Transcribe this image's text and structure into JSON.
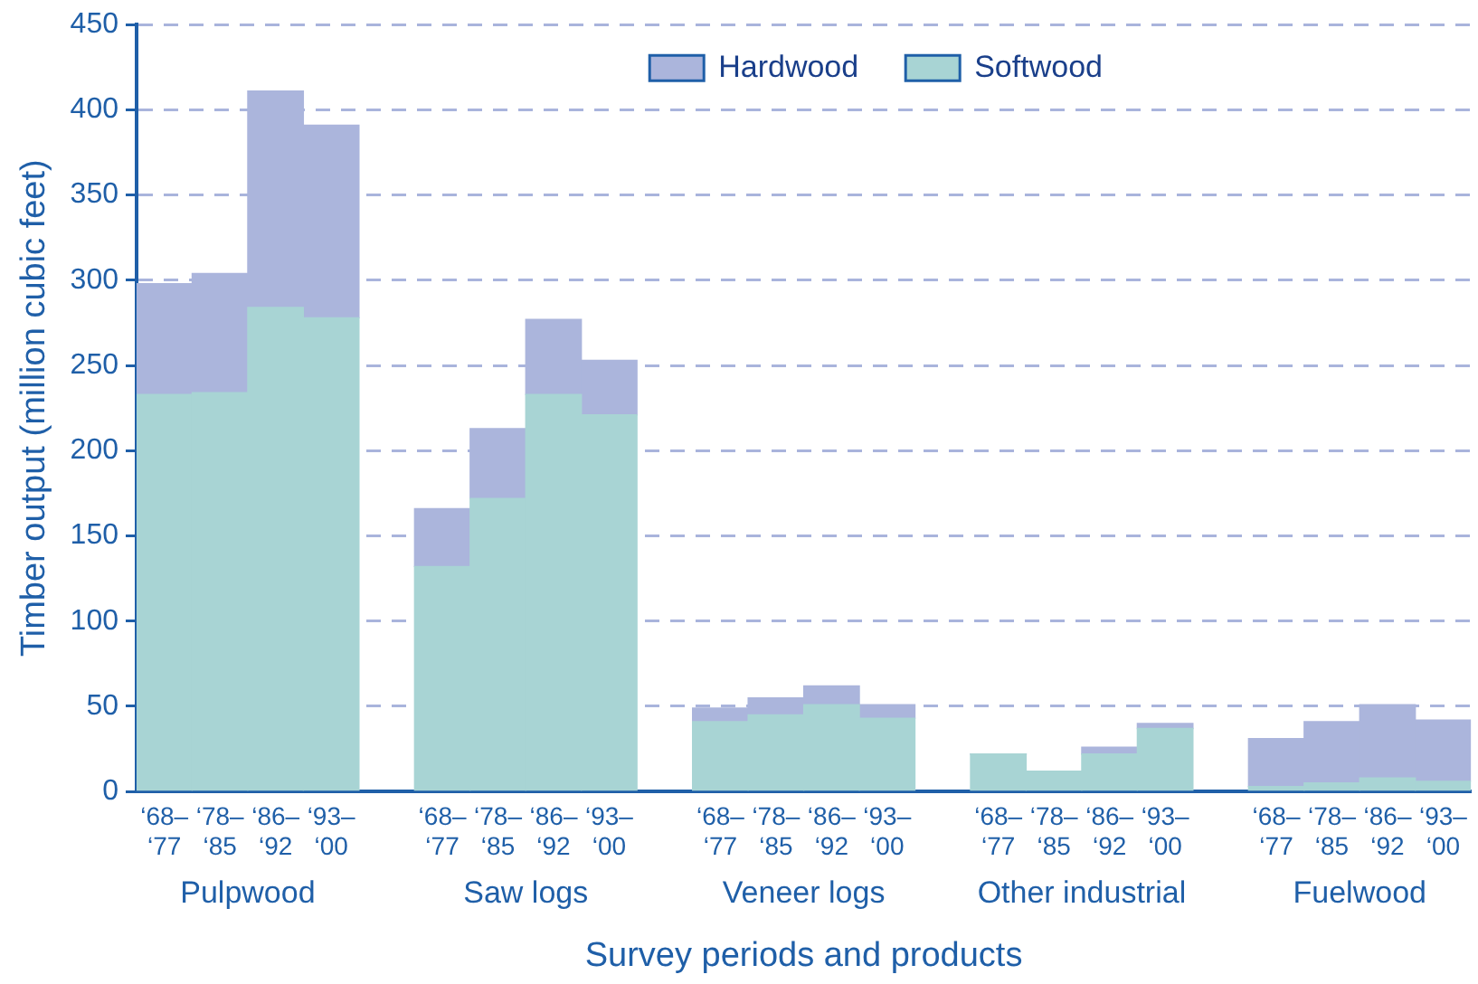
{
  "chart_data": {
    "type": "bar",
    "stacked": true,
    "xlabel": "Survey periods and products",
    "ylabel": "Timber output (million cubic feet)",
    "categories": [
      "‘68–\n‘77",
      "‘78–\n‘85",
      "‘86–\n‘92",
      "‘93–\n‘00",
      null,
      "‘68–\n‘77",
      "‘78–\n‘85",
      "‘86–\n‘92",
      "‘93–\n‘00",
      null,
      "‘68–\n‘77",
      "‘78–\n‘85",
      "‘86–\n‘92",
      "‘93–\n‘00",
      null,
      "‘68–\n‘77",
      "‘78–\n‘85",
      "‘86–\n‘92",
      "‘93–\n‘00",
      null,
      "‘68–\n‘77",
      "‘78–\n‘85",
      "‘86–\n‘92",
      "‘93–\n‘00"
    ],
    "series": [
      {
        "name": "Softwood",
        "color": "#a8d4d4",
        "values": [
          233,
          234,
          284,
          278,
          null,
          132,
          172,
          233,
          221,
          null,
          41,
          45,
          51,
          43,
          null,
          22,
          12,
          22,
          37,
          null,
          3,
          5,
          8,
          6
        ]
      },
      {
        "name": "Hardwood",
        "color": "#abb5dc",
        "values": [
          65,
          70,
          127,
          113,
          null,
          34,
          41,
          44,
          32,
          null,
          8,
          10,
          11,
          8,
          null,
          0,
          0,
          4,
          3,
          null,
          28,
          36,
          43,
          36
        ]
      }
    ],
    "annotations": [
      "Pulpwood",
      "Saw logs",
      "Veneer logs",
      "Other industrial",
      "Fuelwood"
    ],
    "ylim": [
      0,
      450
    ],
    "yticks": [
      0,
      50,
      100,
      150,
      200,
      250,
      300,
      350,
      400,
      450
    ],
    "grid": "y",
    "legend": "top"
  }
}
